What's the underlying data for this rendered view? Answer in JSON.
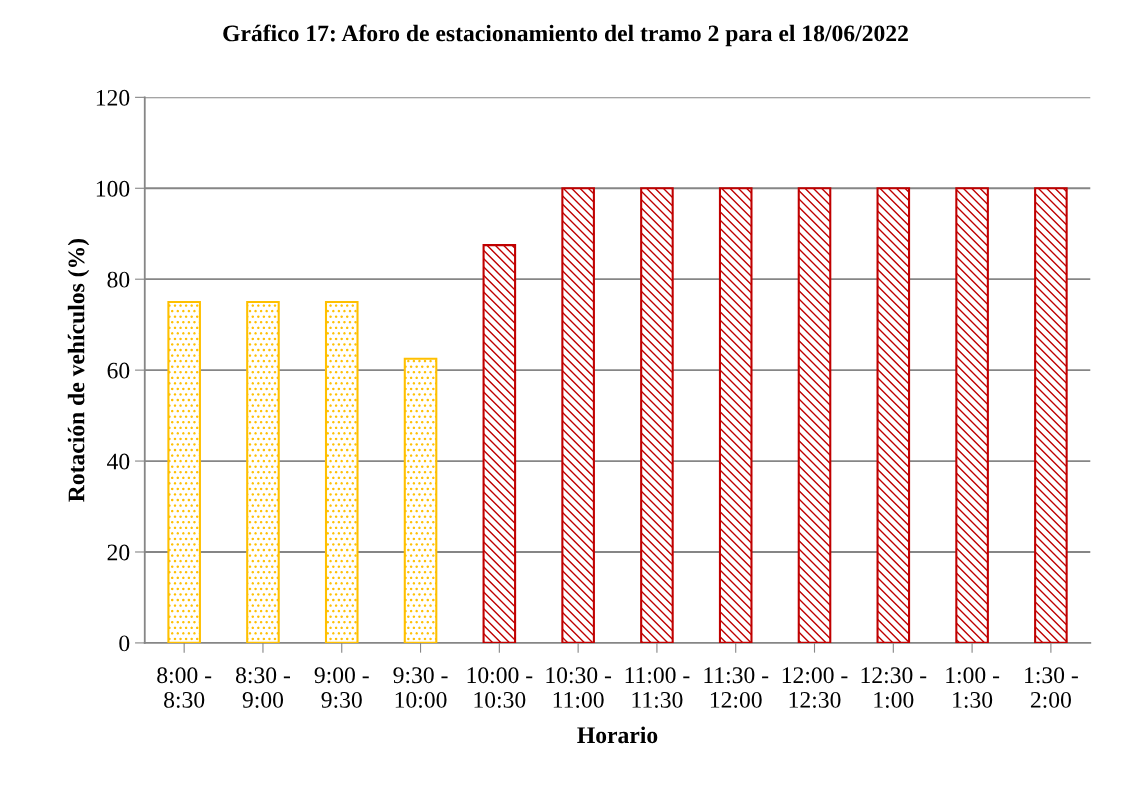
{
  "chart_data": {
    "type": "bar",
    "title": "Gráfico 17: Aforo de estacionamiento del tramo 2 para el 18/06/2022",
    "xlabel": "Horario",
    "ylabel": "Rotación de vehículos (%)",
    "categories": [
      "8:00 -\n8:30",
      "8:30 -\n9:00",
      "9:00 -\n9:30",
      "9:30 -\n10:00",
      "10:00 -\n10:30",
      "10:30 -\n11:00",
      "11:00 -\n11:30",
      "11:30 -\n12:00",
      "12:00 -\n12:30",
      "12:30 -\n1:00",
      "1:00 -\n1:30",
      "1:30 -\n2:00"
    ],
    "values": [
      75,
      75,
      75,
      62.5,
      87.5,
      100,
      100,
      100,
      100,
      100,
      100,
      100
    ],
    "colors": [
      "#ffc000",
      "#ffc000",
      "#ffc000",
      "#ffc000",
      "#c00000",
      "#c00000",
      "#c00000",
      "#c00000",
      "#c00000",
      "#c00000",
      "#c00000",
      "#c00000"
    ],
    "ylim": [
      0,
      120
    ],
    "yticks": [
      0,
      20,
      40,
      60,
      80,
      100,
      120
    ],
    "grid": "y"
  }
}
